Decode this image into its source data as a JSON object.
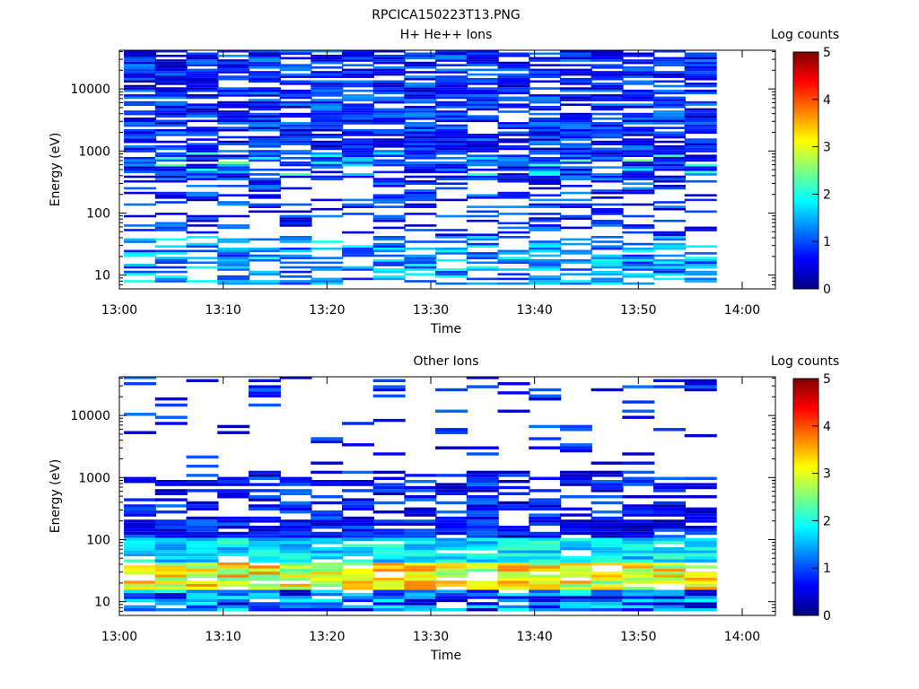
{
  "title": "RPCICA150223T13.PNG",
  "colormap": [
    "#00007f",
    "#0000ff",
    "#007fff",
    "#00ffff",
    "#7fff7f",
    "#ffff00",
    "#ff7f00",
    "#ff0000",
    "#7f0000"
  ],
  "chart_data": [
    {
      "type": "heatmap",
      "title": "H+ He++ Ions",
      "xlabel": "Time",
      "ylabel": "Energy (eV)",
      "xticks": [
        "13:00",
        "13:10",
        "13:20",
        "13:30",
        "13:40",
        "13:50",
        "14:00"
      ],
      "yticks": [
        "10",
        "100",
        "1000",
        "10000"
      ],
      "ylim": [
        6,
        42000
      ],
      "y_scale": "log",
      "colorbar_label": "Log counts",
      "colorbar_ticks": [
        "0",
        "1",
        "2",
        "3",
        "4",
        "5"
      ],
      "clim": [
        0,
        5
      ],
      "time_bins": [
        "13:02",
        "13:05",
        "13:08",
        "13:11",
        "13:14",
        "13:17",
        "13:20",
        "13:23",
        "13:26",
        "13:29",
        "13:32",
        "13:35",
        "13:38",
        "13:41",
        "13:44",
        "13:47",
        "13:50",
        "13:53",
        "13:56",
        "13:59"
      ],
      "energy_bins": [
        10,
        20,
        30,
        50,
        80,
        130,
        200,
        350,
        600,
        1000,
        1800,
        3200,
        6000,
        10000,
        18000,
        32000
      ]
    },
    {
      "type": "heatmap",
      "title": "Other Ions",
      "xlabel": "Time",
      "ylabel": "Energy (eV)",
      "xticks": [
        "13:00",
        "13:10",
        "13:20",
        "13:30",
        "13:40",
        "13:50",
        "14:00"
      ],
      "yticks": [
        "10",
        "100",
        "1000",
        "10000"
      ],
      "ylim": [
        6,
        42000
      ],
      "y_scale": "log",
      "colorbar_label": "Log counts",
      "colorbar_ticks": [
        "0",
        "1",
        "2",
        "3",
        "4",
        "5"
      ],
      "clim": [
        0,
        5
      ],
      "time_bins": [
        "13:02",
        "13:05",
        "13:08",
        "13:11",
        "13:14",
        "13:17",
        "13:20",
        "13:23",
        "13:26",
        "13:29",
        "13:32",
        "13:35",
        "13:38",
        "13:41",
        "13:44",
        "13:47",
        "13:50",
        "13:53",
        "13:56",
        "13:59"
      ],
      "energy_bins": [
        8,
        12,
        18,
        25,
        35,
        50,
        80,
        130,
        200,
        350,
        600,
        1000,
        1800,
        2500,
        4500,
        18000,
        28000
      ]
    }
  ]
}
